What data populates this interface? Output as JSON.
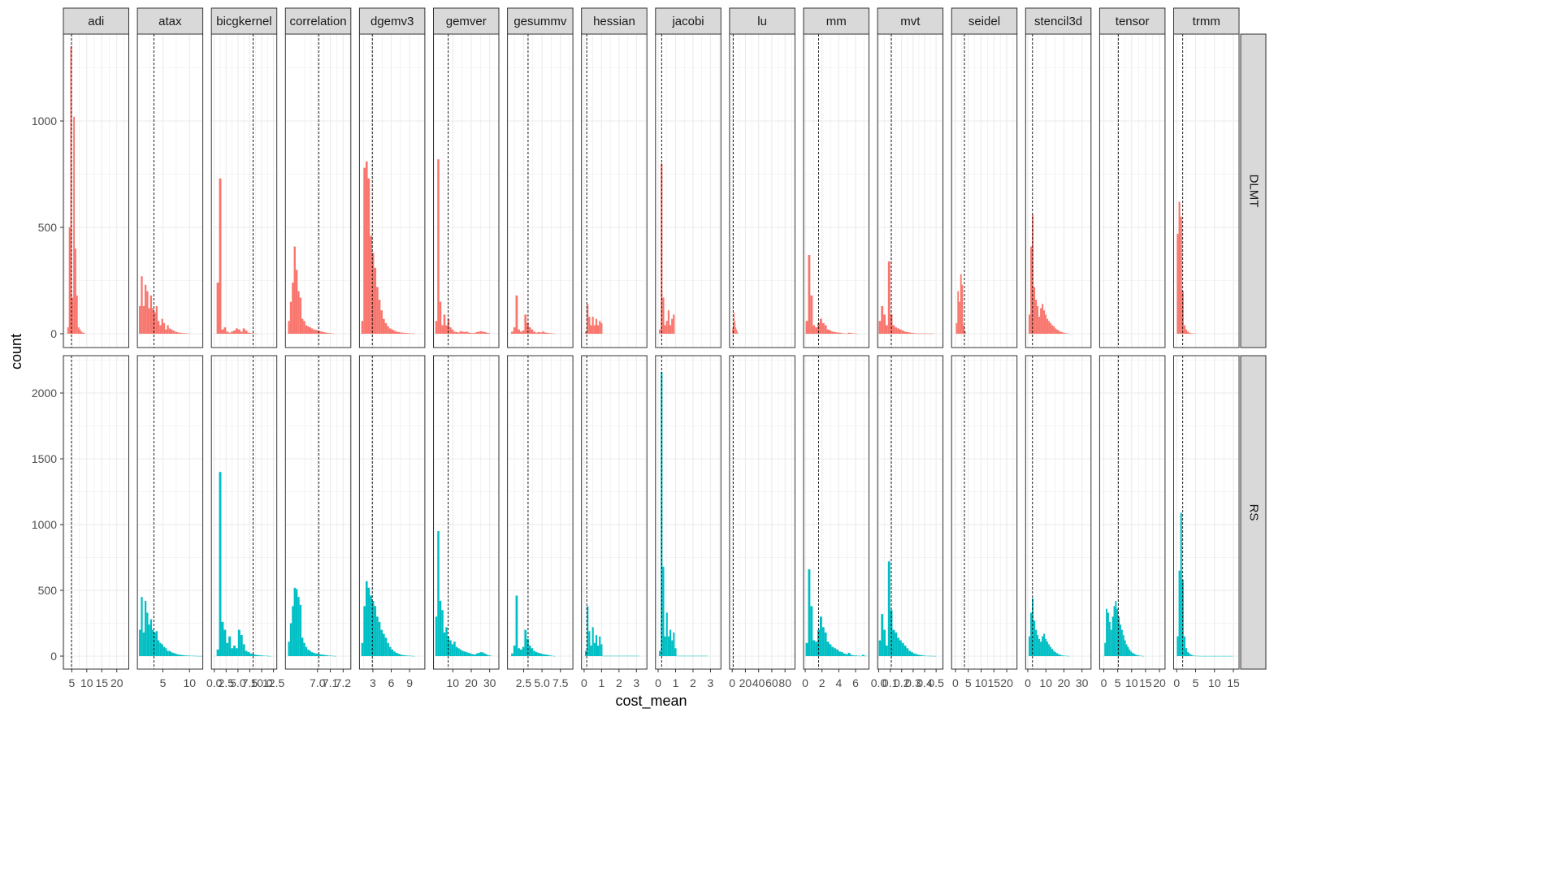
{
  "chart_data": {
    "type": "histogram",
    "xlabel": "cost_mean",
    "ylabel": "count",
    "facets_cols": [
      "adi",
      "atax",
      "bicgkernel",
      "correlation",
      "dgemv3",
      "gemver",
      "gesummv",
      "hessian",
      "jacobi",
      "lu",
      "mm",
      "mvt",
      "seidel",
      "stencil3d",
      "tensor",
      "trmm"
    ],
    "facets_rows": [
      "DLMT",
      "RS"
    ],
    "row_ylim": {
      "DLMT": [
        0,
        1400
      ],
      "RS": [
        0,
        2300
      ]
    },
    "row_yticks": {
      "DLMT": [
        0,
        500,
        1000
      ],
      "RS": [
        0,
        500,
        1000,
        1500,
        2000
      ]
    },
    "colors": {
      "DLMT": "#F8766D",
      "RS": "#00BFC4"
    },
    "xticks_text": {
      "adi": [
        "5",
        "10",
        "15",
        "20"
      ],
      "atax": [
        "5",
        "10"
      ],
      "bicgkernel": [
        "0.0",
        "2.5",
        "5.0",
        "7.5",
        "10.0",
        "12.5"
      ],
      "correlation": [
        "7.0",
        "7.1",
        "7.2"
      ],
      "dgemv3": [
        "3",
        "6",
        "9"
      ],
      "gemver": [
        "10",
        "20",
        "30"
      ],
      "gesummv": [
        "2.5",
        "5.0",
        "7.5"
      ],
      "hessian": [
        "0",
        "1",
        "2",
        "3"
      ],
      "jacobi": [
        "0",
        "1",
        "2",
        "3"
      ],
      "lu": [
        "0",
        "20",
        "40",
        "60",
        "80"
      ],
      "mm": [
        "0",
        "2",
        "4",
        "6"
      ],
      "mvt": [
        "0.0",
        "0.1",
        "0.2",
        "0.3",
        "0.4",
        "0.5"
      ],
      "seidel": [
        "0",
        "5",
        "10",
        "15",
        "20"
      ],
      "stencil3d": [
        "0",
        "10",
        "20",
        "30"
      ],
      "tensor": [
        "0",
        "5",
        "10",
        "15",
        "20"
      ],
      "trmm": [
        "0",
        "5",
        "10",
        "15"
      ]
    },
    "panels": {
      "adi": {
        "xlim": [
          2.2,
          24
        ],
        "xticks": [
          5,
          10,
          15,
          20
        ],
        "vline": 4.9,
        "DLMT": {
          "x0": 3.5,
          "w": 0.5,
          "counts": [
            30,
            500,
            1350,
            170,
            1020,
            400,
            180,
            30,
            20,
            10,
            5,
            3
          ]
        },
        "RS": null
      },
      "atax": {
        "xlim": [
          0.2,
          12.5
        ],
        "xticks": [
          5,
          10
        ],
        "vline": 3.3,
        "DLMT": {
          "x0": 0.5,
          "w": 0.35,
          "counts": [
            130,
            270,
            130,
            230,
            200,
            120,
            180,
            120,
            100,
            130,
            60,
            40,
            70,
            50,
            20,
            40,
            25,
            20,
            15,
            10,
            8,
            5,
            5,
            3,
            3,
            2,
            1
          ]
        },
        "RS": {
          "x0": 0.5,
          "w": 0.35,
          "counts": [
            200,
            450,
            180,
            420,
            330,
            240,
            280,
            200,
            180,
            190,
            120,
            100,
            90,
            70,
            60,
            40,
            40,
            30,
            25,
            20,
            15,
            12,
            10,
            8,
            6,
            5,
            4,
            3,
            3,
            2,
            2,
            1,
            1,
            1
          ]
        }
      },
      "bicgkernel": {
        "xlim": [
          -0.6,
          13.2
        ],
        "xticks": [
          0,
          2.5,
          5,
          7.5,
          10,
          12.5
        ],
        "vline": 8.2,
        "DLMT": {
          "x0": 0.5,
          "w": 0.5,
          "counts": [
            240,
            730,
            20,
            30,
            10,
            5,
            10,
            15,
            25,
            20,
            10,
            25,
            15,
            5,
            3,
            2,
            1
          ]
        },
        "RS": {
          "x0": 0.5,
          "w": 0.5,
          "counts": [
            50,
            1400,
            260,
            200,
            100,
            150,
            60,
            80,
            60,
            200,
            160,
            90,
            40,
            30,
            20,
            15,
            10,
            8,
            6,
            4,
            3,
            2,
            1
          ]
        }
      },
      "correlation": {
        "xlim": [
          6.75,
          7.26
        ],
        "xticks": [
          7.0,
          7.1,
          7.2
        ],
        "vline": 7.01,
        "DLMT": {
          "x0": 6.77,
          "w": 0.015,
          "counts": [
            60,
            150,
            240,
            410,
            300,
            200,
            170,
            70,
            60,
            40,
            35,
            30,
            25,
            20,
            18,
            15,
            12,
            10,
            8,
            6,
            4,
            3,
            2,
            1
          ]
        },
        "RS": {
          "x0": 6.77,
          "w": 0.015,
          "counts": [
            110,
            250,
            380,
            520,
            510,
            450,
            390,
            140,
            100,
            70,
            50,
            40,
            30,
            25,
            20,
            18,
            15,
            12,
            10,
            8,
            6,
            4,
            3,
            2,
            1
          ]
        }
      },
      "dgemv3": {
        "xlim": [
          0.8,
          11.5
        ],
        "xticks": [
          3,
          6,
          9
        ],
        "vline": 2.9,
        "DLMT": {
          "x0": 1.1,
          "w": 0.35,
          "counts": [
            60,
            780,
            810,
            730,
            460,
            380,
            310,
            220,
            160,
            110,
            70,
            50,
            35,
            25,
            20,
            15,
            10,
            8,
            6,
            5,
            4,
            3,
            2,
            1,
            1
          ]
        },
        "RS": {
          "x0": 1.1,
          "w": 0.35,
          "counts": [
            100,
            380,
            570,
            520,
            460,
            420,
            380,
            300,
            260,
            200,
            170,
            140,
            100,
            70,
            50,
            35,
            25,
            18,
            12,
            8,
            6,
            4,
            3,
            2,
            1
          ]
        }
      },
      "gemver": {
        "xlim": [
          -0.5,
          35
        ],
        "xticks": [
          10,
          20,
          30
        ],
        "vline": 7.5,
        "DLMT": {
          "x0": 0.5,
          "w": 1.1,
          "counts": [
            60,
            820,
            150,
            40,
            90,
            40,
            70,
            30,
            20,
            10,
            8,
            6,
            12,
            10,
            8,
            10,
            6,
            4,
            3,
            4,
            8,
            10,
            12,
            10,
            8,
            5,
            3
          ]
        },
        "RS": {
          "x0": 0.5,
          "w": 1.1,
          "counts": [
            300,
            950,
            420,
            350,
            180,
            220,
            150,
            120,
            90,
            110,
            70,
            60,
            50,
            40,
            35,
            30,
            25,
            20,
            15,
            12,
            20,
            25,
            30,
            28,
            20,
            12,
            6,
            3
          ]
        }
      },
      "gesummv": {
        "xlim": [
          0.3,
          9.2
        ],
        "xticks": [
          2.5,
          5.0,
          7.5
        ],
        "vline": 3.1,
        "DLMT": {
          "x0": 0.8,
          "w": 0.3,
          "counts": [
            10,
            30,
            180,
            20,
            10,
            15,
            90,
            50,
            30,
            20,
            10,
            5,
            8,
            6,
            10,
            6,
            4,
            3,
            2,
            1
          ]
        },
        "RS": {
          "x0": 0.8,
          "w": 0.3,
          "counts": [
            20,
            80,
            460,
            60,
            50,
            70,
            200,
            130,
            80,
            60,
            40,
            30,
            25,
            20,
            15,
            12,
            10,
            6,
            3,
            1
          ]
        }
      },
      "hessian": {
        "xlim": [
          -0.15,
          3.6
        ],
        "xticks": [
          0,
          1,
          2,
          3
        ],
        "vline": 0.15,
        "DLMT": {
          "x0": 0.05,
          "w": 0.1,
          "counts": [
            10,
            140,
            80,
            40,
            80,
            40,
            70,
            40,
            60,
            50
          ]
        },
        "RS": {
          "x0": 0.05,
          "w": 0.1,
          "counts": [
            40,
            380,
            190,
            80,
            220,
            100,
            160,
            80,
            150,
            90,
            2,
            2,
            2,
            2,
            2,
            2,
            2,
            2,
            2,
            2,
            2,
            2,
            2,
            2,
            2,
            2,
            2,
            2,
            2,
            2,
            2
          ]
        }
      },
      "jacobi": {
        "xlim": [
          -0.15,
          3.6
        ],
        "xticks": [
          0,
          1,
          2,
          3
        ],
        "vline": 0.2,
        "DLMT": {
          "x0": 0.05,
          "w": 0.1,
          "counts": [
            20,
            800,
            170,
            40,
            60,
            110,
            40,
            70,
            90
          ]
        },
        "RS": {
          "x0": 0.05,
          "w": 0.1,
          "counts": [
            40,
            2160,
            680,
            150,
            330,
            150,
            200,
            120,
            180,
            60,
            2,
            2,
            2,
            2,
            2,
            2,
            2,
            2,
            2,
            2,
            2,
            2,
            2,
            2,
            2,
            2,
            2,
            2
          ]
        }
      },
      "lu": {
        "xlim": [
          -4,
          95
        ],
        "xticks": [
          0,
          20,
          40,
          60,
          80
        ],
        "vline": 1.5,
        "DLMT": {
          "x0": 0.2,
          "w": 1.2,
          "counts": [
            25,
            50,
            100,
            60,
            30,
            20,
            10
          ]
        },
        "RS": null
      },
      "mm": {
        "xlim": [
          -0.2,
          7.6
        ],
        "xticks": [
          0,
          2,
          4,
          6
        ],
        "vline": 1.6,
        "DLMT": {
          "x0": 0.05,
          "w": 0.28,
          "counts": [
            60,
            370,
            180,
            40,
            30,
            50,
            70,
            50,
            40,
            20,
            15,
            10,
            8,
            6,
            5,
            3,
            2,
            1,
            5,
            3,
            2,
            1
          ]
        },
        "RS": {
          "x0": 0.05,
          "w": 0.28,
          "counts": [
            100,
            660,
            380,
            120,
            110,
            200,
            300,
            220,
            180,
            110,
            90,
            70,
            60,
            50,
            35,
            30,
            20,
            15,
            25,
            10,
            5,
            5,
            3,
            2,
            10,
            2
          ]
        }
      },
      "mvt": {
        "xlim": [
          -0.01,
          0.56
        ],
        "xticks": [
          0,
          0.1,
          0.2,
          0.3,
          0.4,
          0.5
        ],
        "vline": 0.11,
        "DLMT": {
          "x0": 0.0,
          "w": 0.02,
          "counts": [
            60,
            130,
            90,
            40,
            340,
            90,
            40,
            30,
            25,
            20,
            15,
            10,
            8,
            6,
            4,
            3,
            2,
            1,
            1,
            1,
            1,
            1,
            1,
            1
          ]
        },
        "RS": {
          "x0": 0.0,
          "w": 0.02,
          "counts": [
            120,
            320,
            200,
            80,
            720,
            350,
            200,
            180,
            140,
            120,
            100,
            80,
            60,
            40,
            30,
            20,
            15,
            10,
            8,
            5,
            3,
            2,
            2,
            1,
            1
          ]
        }
      },
      "seidel": {
        "xlim": [
          -1.5,
          24
        ],
        "xticks": [
          0,
          5,
          10,
          15,
          20
        ],
        "vline": 3.5,
        "DLMT": {
          "x0": 0.2,
          "w": 0.55,
          "counts": [
            50,
            200,
            150,
            280,
            230,
            40,
            10
          ]
        },
        "RS": null
      },
      "stencil3d": {
        "xlim": [
          -1.2,
          35
        ],
        "xticks": [
          0,
          10,
          20,
          30
        ],
        "vline": 2.6,
        "DLMT": {
          "x0": 0.5,
          "w": 0.9,
          "counts": [
            90,
            410,
            560,
            220,
            160,
            130,
            80,
            120,
            140,
            110,
            90,
            70,
            60,
            50,
            40,
            35,
            25,
            20,
            15,
            10,
            8,
            5,
            3,
            2,
            1
          ]
        },
        "RS": {
          "x0": 0.5,
          "w": 0.9,
          "counts": [
            150,
            330,
            440,
            270,
            200,
            160,
            130,
            110,
            150,
            170,
            130,
            110,
            90,
            70,
            55,
            40,
            30,
            22,
            15,
            10,
            6,
            4,
            3,
            2,
            1
          ]
        }
      },
      "tensor": {
        "xlim": [
          -1.5,
          22
        ],
        "xticks": [
          0,
          5,
          10,
          15,
          20
        ],
        "vline": 5.2,
        "DLMT": null,
        "RS": {
          "x0": 0.2,
          "w": 0.55,
          "counts": [
            100,
            360,
            330,
            260,
            200,
            300,
            380,
            420,
            360,
            300,
            240,
            200,
            160,
            120,
            90,
            70,
            50,
            35,
            25,
            18,
            12,
            8,
            5,
            3,
            2,
            1
          ]
        }
      },
      "trmm": {
        "xlim": [
          -0.8,
          16.5
        ],
        "xticks": [
          0,
          5,
          10,
          15
        ],
        "vline": 1.6,
        "DLMT": {
          "x0": 0.05,
          "w": 0.45,
          "counts": [
            470,
            620,
            550,
            200,
            40,
            20,
            10,
            5,
            3,
            2,
            1
          ]
        },
        "RS": {
          "x0": 0.05,
          "w": 0.45,
          "counts": [
            150,
            650,
            1090,
            580,
            150,
            60,
            30,
            20,
            10,
            5,
            3,
            2,
            2,
            1,
            1,
            1,
            1,
            1,
            1,
            1,
            1,
            1,
            1,
            1,
            1,
            1,
            1,
            1,
            1,
            1,
            1,
            1,
            1
          ]
        }
      }
    }
  }
}
